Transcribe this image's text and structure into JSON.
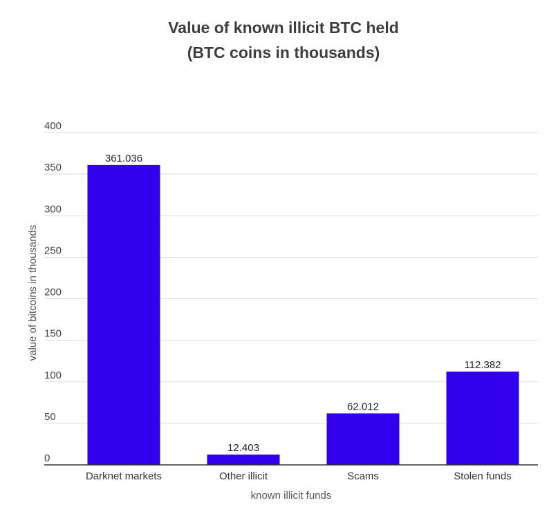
{
  "chart_data": {
    "type": "bar",
    "title": "Value of known illicit BTC held",
    "subtitle": "(BTC coins in thousands)",
    "xlabel": "known illicit funds",
    "ylabel": "value of bitcoins in thousands",
    "categories": [
      "Darknet markets",
      "Other illicit",
      "Scams",
      "Stolen funds"
    ],
    "values": [
      361.036,
      12.403,
      62.012,
      112.382
    ],
    "data_labels": [
      "361.036",
      "12.403",
      "62.012",
      "112.382"
    ],
    "ylim": [
      0,
      400
    ],
    "yticks": [
      0,
      50,
      100,
      150,
      200,
      250,
      300,
      350,
      400
    ],
    "grid": true,
    "legend": "none",
    "bar_color": "#3300ee"
  }
}
